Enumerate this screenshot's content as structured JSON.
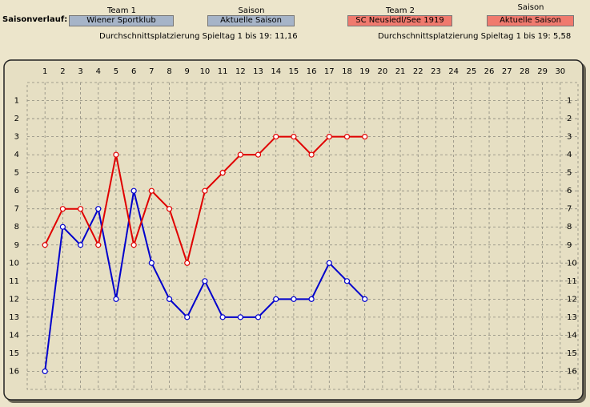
{
  "header": {
    "label": "Saisonverlauf:",
    "team1": {
      "caption": "Team 1",
      "value": "Wiener Sportklub"
    },
    "season1": {
      "caption": "Saison",
      "value": "Aktuelle Saison"
    },
    "team2": {
      "caption": "Team 2",
      "value": "SC Neusiedl/See 1919"
    },
    "season2": {
      "caption": "Saison",
      "value": "Aktuelle Saison"
    },
    "average1": "Durchschnittsplatzierung Spieltag 1 bis 19:  11,16",
    "average2": "Durchschnittsplatzierung Spieltag 1 bis 19:  5,58"
  },
  "chart_data": {
    "type": "line",
    "x": [
      1,
      2,
      3,
      4,
      5,
      6,
      7,
      8,
      9,
      10,
      11,
      12,
      13,
      14,
      15,
      16,
      17,
      18,
      19
    ],
    "series": [
      {
        "name": "Wiener Sportklub",
        "color": "#0000cc",
        "values": [
          16,
          8,
          9,
          7,
          12,
          6,
          10,
          12,
          13,
          11,
          13,
          13,
          13,
          12,
          12,
          12,
          10,
          11,
          12
        ]
      },
      {
        "name": "SC Neusiedl/See 1919",
        "color": "#e00000",
        "values": [
          9,
          7,
          7,
          9,
          4,
          9,
          6,
          7,
          10,
          6,
          5,
          4,
          4,
          3,
          3,
          4,
          3,
          3,
          3
        ]
      }
    ],
    "xlim": [
      0,
      31
    ],
    "xticks": [
      1,
      2,
      3,
      4,
      5,
      6,
      7,
      8,
      9,
      10,
      11,
      12,
      13,
      14,
      15,
      16,
      17,
      18,
      19,
      20,
      21,
      22,
      23,
      24,
      25,
      26,
      27,
      28,
      29,
      30
    ],
    "ylim": [
      17,
      0
    ],
    "yticks": [
      1,
      2,
      3,
      4,
      5,
      6,
      7,
      8,
      9,
      10,
      11,
      12,
      13,
      14,
      15,
      16
    ],
    "grid": true
  }
}
